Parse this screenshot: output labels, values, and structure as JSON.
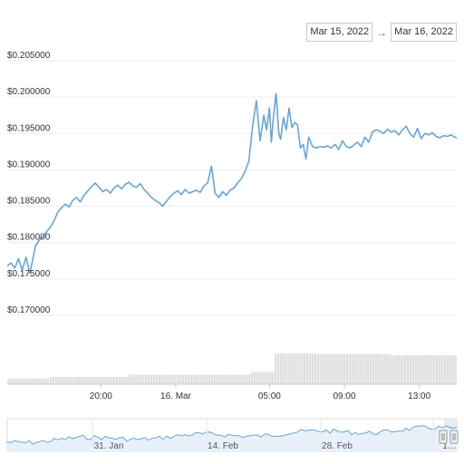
{
  "range_selector": {
    "from": "Mar 15, 2022",
    "arrow": "→",
    "to": "Mar 16, 2022"
  },
  "colors": {
    "line": "#64a6de",
    "volume_bar": "#e2e2e2",
    "nav_fill": "#e8f1fa",
    "grid": "#ececec",
    "axis_text": "#333333"
  },
  "chart_data": {
    "type": "line",
    "title": "",
    "xlabel": "",
    "ylabel": "",
    "ylim": [
      0.165,
      0.205
    ],
    "y_ticks": [
      "$0.205000",
      "$0.200000",
      "$0.195000",
      "$0.190000",
      "$0.185000",
      "$0.180000",
      "$0.175000",
      "$0.170000"
    ],
    "y_tick_values": [
      0.205,
      0.2,
      0.195,
      0.19,
      0.185,
      0.18,
      0.175,
      0.17
    ],
    "x_range_hours": [
      0,
      24
    ],
    "x_ticks": [
      {
        "label": "20:00",
        "h": 5
      },
      {
        "label": "16. Mar",
        "h": 9
      },
      {
        "label": "05:00",
        "h": 14
      },
      {
        "label": "09:00",
        "h": 18
      },
      {
        "label": "13:00",
        "h": 22
      }
    ],
    "grid": true,
    "series": [
      {
        "x": [
          0,
          0.2,
          0.4,
          0.6,
          0.8,
          1.0,
          1.2,
          1.35,
          1.5,
          1.7,
          1.9,
          2.1,
          2.3,
          2.5,
          2.7,
          2.9,
          3.1,
          3.3,
          3.5,
          3.7,
          3.9,
          4.1,
          4.3,
          4.5,
          4.7,
          4.9,
          5.1,
          5.3,
          5.5,
          5.7,
          5.9,
          6.1,
          6.3,
          6.5,
          6.7,
          6.9,
          7.1,
          7.3,
          7.5,
          7.7,
          7.9,
          8.1,
          8.3,
          8.5,
          8.7,
          8.9,
          9.1,
          9.3,
          9.5,
          9.7,
          9.9,
          10.1,
          10.3,
          10.5,
          10.7,
          10.9,
          11.1,
          11.3,
          11.5,
          11.7,
          11.9,
          12.1,
          12.3,
          12.5,
          12.7,
          12.9,
          13.1,
          13.3,
          13.5,
          13.7,
          13.85,
          14.0,
          14.1,
          14.2,
          14.35,
          14.5,
          14.6,
          14.75,
          14.9,
          15.05,
          15.2,
          15.35,
          15.5,
          15.65,
          15.8,
          15.95,
          16.1,
          16.3,
          16.5,
          16.7,
          16.9,
          17.1,
          17.3,
          17.5,
          17.7,
          17.9,
          18.1,
          18.3,
          18.5,
          18.7,
          18.9,
          19.1,
          19.3,
          19.5,
          19.7,
          19.9,
          20.1,
          20.3,
          20.5,
          20.7,
          20.9,
          21.1,
          21.3,
          21.5,
          21.7,
          21.9,
          22.1,
          22.3,
          22.5,
          22.7,
          22.9,
          23.1,
          23.3,
          23.5,
          23.7,
          23.9,
          24.0
        ],
        "y": [
          0.1768,
          0.1772,
          0.1765,
          0.1778,
          0.1762,
          0.178,
          0.1758,
          0.1775,
          0.1795,
          0.1803,
          0.1808,
          0.1815,
          0.1821,
          0.183,
          0.1842,
          0.1848,
          0.1853,
          0.1849,
          0.1858,
          0.1862,
          0.1856,
          0.1865,
          0.1871,
          0.1877,
          0.1882,
          0.1876,
          0.187,
          0.1873,
          0.1868,
          0.1875,
          0.1879,
          0.1874,
          0.188,
          0.1883,
          0.1878,
          0.1876,
          0.1881,
          0.1873,
          0.1868,
          0.1862,
          0.1858,
          0.1855,
          0.185,
          0.1857,
          0.1863,
          0.1868,
          0.1871,
          0.1866,
          0.1873,
          0.1868,
          0.187,
          0.1872,
          0.1869,
          0.1878,
          0.1882,
          0.1905,
          0.1868,
          0.1862,
          0.187,
          0.1865,
          0.1872,
          0.1875,
          0.1882,
          0.1888,
          0.1898,
          0.1912,
          0.196,
          0.1995,
          0.194,
          0.1975,
          0.1955,
          0.1985,
          0.1938,
          0.197,
          0.2005,
          0.195,
          0.1942,
          0.1972,
          0.1955,
          0.1985,
          0.1958,
          0.1965,
          0.1962,
          0.193,
          0.1935,
          0.1915,
          0.1945,
          0.1932,
          0.193,
          0.1932,
          0.1931,
          0.1933,
          0.193,
          0.1935,
          0.1928,
          0.194,
          0.1932,
          0.193,
          0.1934,
          0.1938,
          0.1932,
          0.1945,
          0.1938,
          0.1952,
          0.1955,
          0.1953,
          0.195,
          0.1956,
          0.1952,
          0.1954,
          0.1948,
          0.1955,
          0.196,
          0.195,
          0.1945,
          0.1957,
          0.1943,
          0.195,
          0.1948,
          0.1951,
          0.1946,
          0.1944,
          0.1947,
          0.1946,
          0.1948,
          0.1945,
          0.1944
        ]
      }
    ],
    "volume": {
      "levels": [
        {
          "from": 0,
          "to": 2.2,
          "value": 0.1
        },
        {
          "from": 2.2,
          "to": 6.5,
          "value": 0.13
        },
        {
          "from": 6.5,
          "to": 13.0,
          "value": 0.17
        },
        {
          "from": 13.0,
          "to": 14.2,
          "value": 0.22
        },
        {
          "from": 14.2,
          "to": 16.5,
          "value": 0.56
        },
        {
          "from": 16.5,
          "to": 20.5,
          "value": 0.55
        },
        {
          "from": 20.5,
          "to": 24.0,
          "value": 0.53
        }
      ]
    },
    "navigator": {
      "x_ticks": [
        "31. Jan",
        "14. Feb",
        "28. Feb",
        "1…"
      ]
    }
  }
}
